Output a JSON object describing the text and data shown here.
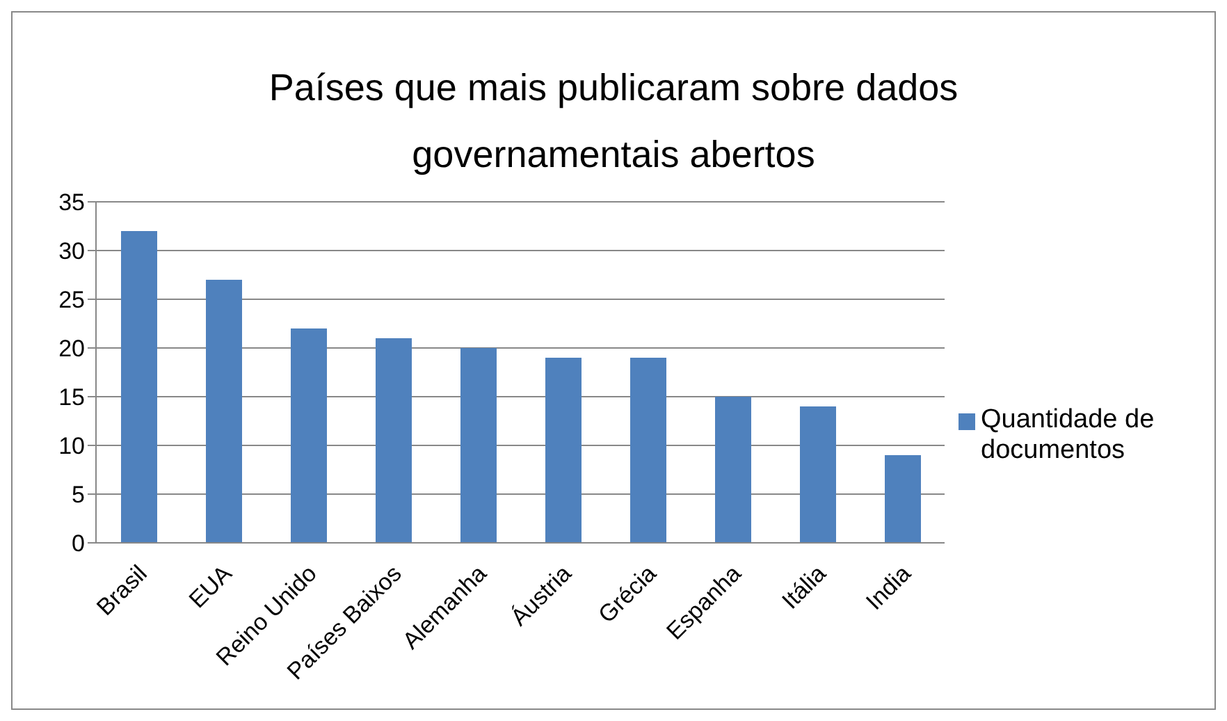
{
  "chart_data": {
    "type": "bar",
    "title": "Países que mais publicaram sobre dados governamentais abertos",
    "categories": [
      "Brasil",
      "EUA",
      "Reino Unido",
      "Países Baixos",
      "Alemanha",
      "Áustria",
      "Grécia",
      "Espanha",
      "Itália",
      "India"
    ],
    "series": [
      {
        "name": "Quantidade de documentos",
        "color": "#4f81bd",
        "values": [
          32,
          27,
          22,
          21,
          20,
          19,
          19,
          15,
          14,
          9
        ]
      }
    ],
    "ylim": [
      0,
      35
    ],
    "yticks": [
      0,
      5,
      10,
      15,
      20,
      25,
      30,
      35
    ],
    "grid": "y",
    "legend": "right"
  }
}
